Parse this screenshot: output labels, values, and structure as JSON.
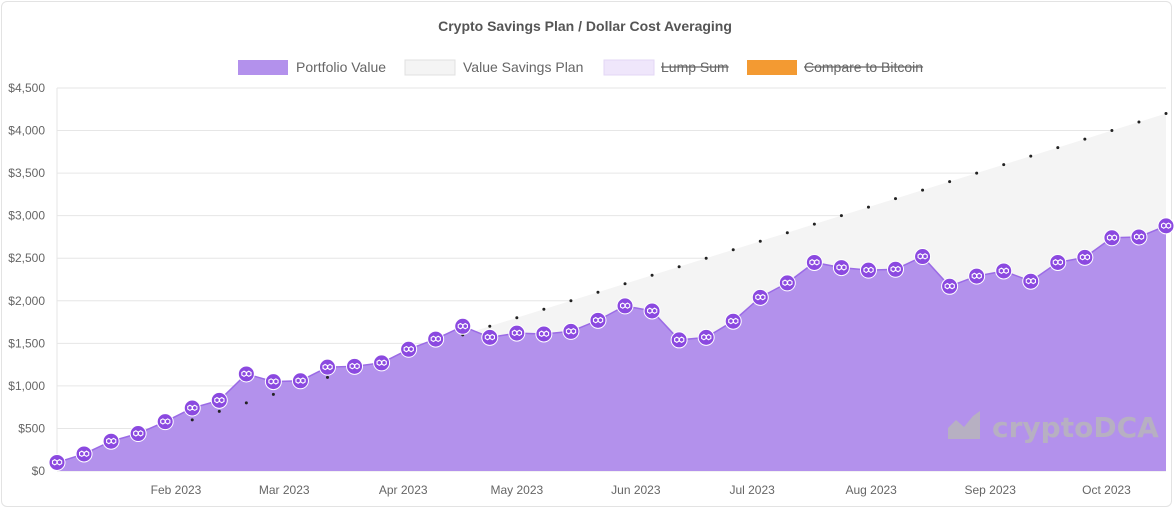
{
  "chart_data": {
    "type": "line",
    "title": "Crypto Savings Plan / Dollar Cost Averaging",
    "legend": [
      {
        "label": "Portfolio Value",
        "color": "#b391ec",
        "hidden": false
      },
      {
        "label": "Value Savings Plan",
        "color": "#f4f4f4",
        "hidden": false
      },
      {
        "label": "Lump Sum",
        "color": "#efe6fb",
        "hidden": true
      },
      {
        "label": "Compare to Bitcoin",
        "color": "#f39a32",
        "hidden": true
      }
    ],
    "legend_position": "top",
    "ylim": [
      0,
      4500
    ],
    "yticks": [
      "$0",
      "$500",
      "$1,000",
      "$1,500",
      "$2,000",
      "$2,500",
      "$3,000",
      "$3,500",
      "$4,000",
      "$4,500"
    ],
    "xticks": [
      "Feb 2023",
      "Mar 2023",
      "Apr 2023",
      "May 2023",
      "Jun 2023",
      "Jul 2023",
      "Aug 2023",
      "Sep 2023",
      "Oct 2023"
    ],
    "x_interval": "weekly",
    "grid": true,
    "series": [
      {
        "name": "Portfolio Value",
        "color": "#b391ec",
        "marker_color": "#8b49e0",
        "values": [
          100,
          200,
          350,
          440,
          580,
          740,
          830,
          1140,
          1050,
          1060,
          1220,
          1230,
          1270,
          1430,
          1550,
          1700,
          1570,
          1620,
          1610,
          1640,
          1770,
          1940,
          1880,
          1540,
          1570,
          1760,
          2040,
          2210,
          2450,
          2390,
          2360,
          2370,
          2520,
          2170,
          2290,
          2350,
          2230,
          2450,
          2510,
          2740,
          2750,
          2880
        ]
      },
      {
        "name": "Value Savings Plan",
        "color": "#f4f4f4",
        "values": [
          100,
          200,
          300,
          400,
          500,
          600,
          700,
          800,
          900,
          1000,
          1100,
          1200,
          1300,
          1400,
          1500,
          1600,
          1700,
          1800,
          1900,
          2000,
          2100,
          2200,
          2300,
          2400,
          2500,
          2600,
          2700,
          2800,
          2900,
          3000,
          3100,
          3200,
          3300,
          3400,
          3500,
          3600,
          3700,
          3800,
          3900,
          4000,
          4100,
          4200
        ]
      }
    ]
  },
  "watermark": "cryptoDCA",
  "marker_icon": "polygon-coin-icon"
}
